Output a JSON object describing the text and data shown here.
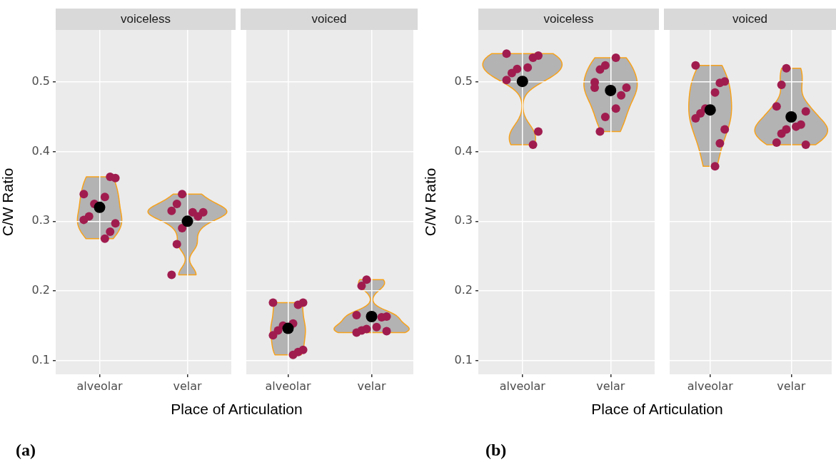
{
  "chart_data": [
    {
      "type": "scatter",
      "title": "voiceless",
      "categories": [
        "alveolar",
        "velar"
      ],
      "xlabel": "Place of Articulation",
      "ylabel": "C/W Ratio",
      "ylim": [
        0.08,
        0.575
      ],
      "yticks": [
        0.1,
        0.2,
        0.3,
        0.4,
        0.5
      ],
      "grid": true,
      "legend": false,
      "marker": "circle",
      "annotations": [
        "(a)"
      ],
      "series": [
        {
          "color": "#a01c4f",
          "x": [
            "alveolar",
            "alveolar",
            "alveolar",
            "alveolar",
            "alveolar",
            "alveolar",
            "alveolar",
            "alveolar",
            "alveolar",
            "alveolar",
            "velar",
            "velar",
            "velar",
            "velar",
            "velar",
            "velar",
            "velar",
            "velar",
            "velar"
          ],
          "values": [
            0.339,
            0.362,
            0.364,
            0.335,
            0.325,
            0.307,
            0.302,
            0.297,
            0.285,
            0.275,
            0.339,
            0.325,
            0.315,
            0.313,
            0.307,
            0.313,
            0.29,
            0.267,
            0.223
          ]
        },
        {
          "color": "#000000",
          "x": [
            "alveolar",
            "velar"
          ],
          "values": [
            0.32,
            0.3
          ]
        }
      ]
    },
    {
      "type": "scatter",
      "title": "voiced",
      "categories": [
        "alveolar",
        "velar"
      ],
      "ylim": [
        0.08,
        0.575
      ],
      "yticks": [
        0.1,
        0.2,
        0.3,
        0.4,
        0.5
      ],
      "grid": true,
      "legend": false,
      "marker": "circle",
      "tick_labels": "x",
      "series": [
        {
          "color": "#a01c4f",
          "x": [
            "alveolar",
            "alveolar",
            "alveolar",
            "alveolar",
            "alveolar",
            "alveolar",
            "alveolar",
            "alveolar",
            "alveolar",
            "alveolar",
            "velar",
            "velar",
            "velar",
            "velar",
            "velar",
            "velar",
            "velar",
            "velar",
            "velar",
            "velar"
          ],
          "values": [
            0.183,
            0.183,
            0.18,
            0.153,
            0.15,
            0.143,
            0.136,
            0.115,
            0.112,
            0.108,
            0.216,
            0.207,
            0.165,
            0.163,
            0.162,
            0.148,
            0.145,
            0.143,
            0.14,
            0.142
          ]
        },
        {
          "color": "#000000",
          "x": [
            "alveolar",
            "velar"
          ],
          "values": [
            0.146,
            0.163
          ]
        }
      ]
    },
    {
      "type": "scatter",
      "title": "voiceless",
      "categories": [
        "alveolar",
        "velar"
      ],
      "xlabel": "Place of Articulation",
      "ylabel": "C/W Ratio",
      "ylim": [
        0.08,
        0.575
      ],
      "yticks": [
        0.1,
        0.2,
        0.3,
        0.4,
        0.5
      ],
      "grid": true,
      "legend": false,
      "marker": "circle",
      "annotations": [
        "(b)"
      ],
      "series": [
        {
          "color": "#a01c4f",
          "x": [
            "alveolar",
            "alveolar",
            "alveolar",
            "alveolar",
            "alveolar",
            "alveolar",
            "alveolar",
            "alveolar",
            "alveolar",
            "velar",
            "velar",
            "velar",
            "velar",
            "velar",
            "velar",
            "velar",
            "velar",
            "velar",
            "velar"
          ],
          "values": [
            0.541,
            0.538,
            0.535,
            0.521,
            0.519,
            0.513,
            0.503,
            0.429,
            0.41,
            0.535,
            0.524,
            0.518,
            0.5,
            0.492,
            0.481,
            0.462,
            0.45,
            0.429,
            0.492
          ]
        },
        {
          "color": "#000000",
          "x": [
            "alveolar",
            "velar"
          ],
          "values": [
            0.501,
            0.488
          ]
        }
      ]
    },
    {
      "type": "scatter",
      "title": "voiced",
      "categories": [
        "alveolar",
        "velar"
      ],
      "ylim": [
        0.08,
        0.575
      ],
      "yticks": [
        0.1,
        0.2,
        0.3,
        0.4,
        0.5
      ],
      "grid": true,
      "legend": false,
      "marker": "circle",
      "tick_labels": "x",
      "series": [
        {
          "color": "#a01c4f",
          "x": [
            "alveolar",
            "alveolar",
            "alveolar",
            "alveolar",
            "alveolar",
            "alveolar",
            "alveolar",
            "alveolar",
            "alveolar",
            "alveolar",
            "velar",
            "velar",
            "velar",
            "velar",
            "velar",
            "velar",
            "velar",
            "velar",
            "velar",
            "velar"
          ],
          "values": [
            0.524,
            0.501,
            0.499,
            0.485,
            0.462,
            0.455,
            0.448,
            0.432,
            0.412,
            0.379,
            0.52,
            0.496,
            0.465,
            0.458,
            0.439,
            0.436,
            0.432,
            0.426,
            0.413,
            0.41
          ]
        },
        {
          "color": "#000000",
          "x": [
            "alveolar",
            "velar"
          ],
          "values": [
            0.46,
            0.45
          ]
        }
      ]
    }
  ]
}
